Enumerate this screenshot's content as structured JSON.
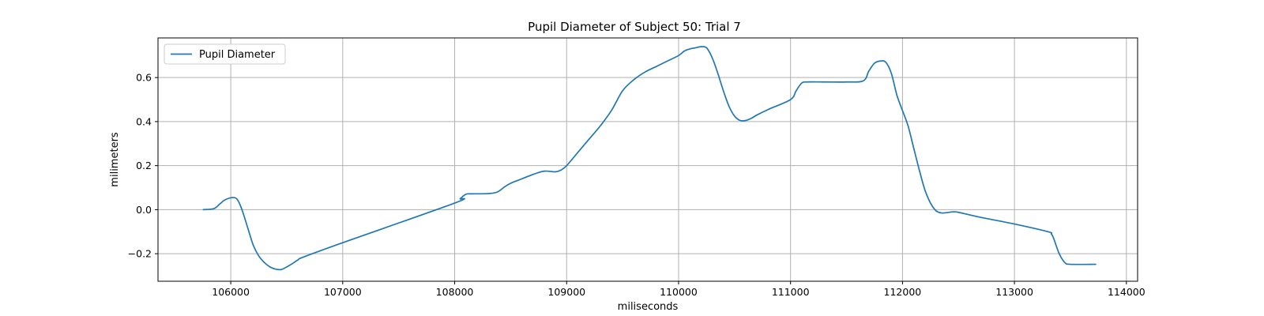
{
  "chart_data": {
    "type": "line",
    "title": "Pupil Diameter of Subject 50: Trial 7",
    "xlabel": "miliseconds",
    "ylabel": "milimeters",
    "xlim": [
      105350,
      114100
    ],
    "ylim": [
      -0.325,
      0.78
    ],
    "xticks": [
      106000,
      107000,
      108000,
      109000,
      110000,
      111000,
      112000,
      113000,
      114000
    ],
    "yticks": [
      -0.2,
      0.0,
      0.2,
      0.4,
      0.6
    ],
    "grid": true,
    "legend_position": "top-left",
    "series": [
      {
        "name": "Pupil Diameter",
        "color": "#1f77b4",
        "x": [
          105750,
          105850,
          105900,
          105950,
          106020,
          106060,
          106100,
          106150,
          106200,
          106250,
          106300,
          106350,
          106400,
          106450,
          106500,
          106550,
          106600,
          106650,
          107000,
          108000,
          108050,
          108100,
          108150,
          108300,
          108380,
          108450,
          108500,
          108600,
          108700,
          108800,
          108900,
          108950,
          109000,
          109100,
          109200,
          109300,
          109400,
          109500,
          109600,
          109700,
          109800,
          109900,
          110000,
          110050,
          110100,
          110150,
          110200,
          110250,
          110300,
          110350,
          110400,
          110450,
          110500,
          110550,
          110600,
          110650,
          110700,
          110800,
          111000,
          111050,
          111100,
          111150,
          111300,
          111500,
          111650,
          111700,
          111750,
          111800,
          111850,
          111900,
          111950,
          112000,
          112050,
          112100,
          112150,
          112200,
          112250,
          112300,
          112350,
          112400,
          112450,
          112500,
          112700,
          113000,
          113300,
          113330,
          113350,
          113400,
          113450,
          113500,
          113730
        ],
        "y": [
          0.0,
          0.005,
          0.025,
          0.045,
          0.055,
          0.045,
          0.0,
          -0.08,
          -0.16,
          -0.21,
          -0.24,
          -0.26,
          -0.27,
          -0.272,
          -0.26,
          -0.245,
          -0.228,
          -0.215,
          -0.15,
          0.03,
          0.05,
          0.07,
          0.072,
          0.073,
          0.08,
          0.105,
          0.12,
          0.14,
          0.16,
          0.175,
          0.172,
          0.18,
          0.2,
          0.26,
          0.32,
          0.38,
          0.45,
          0.54,
          0.59,
          0.625,
          0.65,
          0.675,
          0.7,
          0.72,
          0.73,
          0.735,
          0.74,
          0.735,
          0.69,
          0.62,
          0.54,
          0.47,
          0.425,
          0.405,
          0.405,
          0.415,
          0.43,
          0.455,
          0.5,
          0.54,
          0.575,
          0.58,
          0.58,
          0.58,
          0.585,
          0.63,
          0.665,
          0.675,
          0.67,
          0.62,
          0.52,
          0.45,
          0.38,
          0.28,
          0.18,
          0.09,
          0.03,
          -0.005,
          -0.015,
          -0.013,
          -0.01,
          -0.012,
          -0.035,
          -0.065,
          -0.1,
          -0.11,
          -0.13,
          -0.2,
          -0.24,
          -0.248,
          -0.248
        ]
      }
    ]
  }
}
